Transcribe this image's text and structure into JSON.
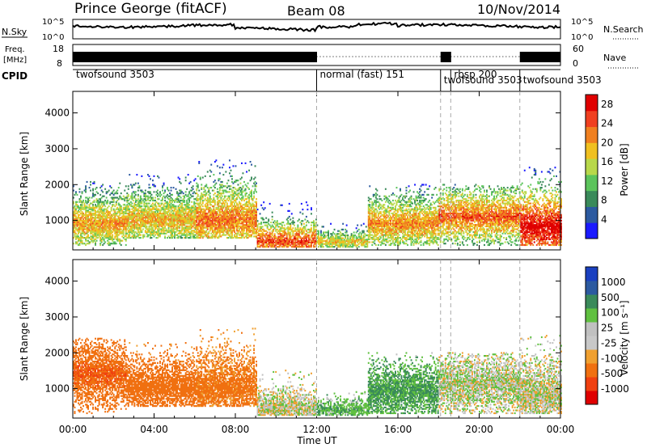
{
  "header": {
    "station": "Prince George (fitACF)",
    "beam": "Beam 08",
    "date": "10/Nov/2014"
  },
  "aux_panels": {
    "nsky": {
      "label": "N.Sky",
      "ticks": [
        "10^5",
        "10^0"
      ],
      "right_ticks": [
        "10^5",
        "10^0"
      ],
      "right_label": "N.Search"
    },
    "freq": {
      "label_line1": "Freq.",
      "label_line2": "[MHz]",
      "ticks": [
        "18",
        "8"
      ],
      "right_ticks": [
        "60",
        "0"
      ],
      "right_label": "Nave"
    },
    "cpid": {
      "label": "CPID",
      "programs": [
        {
          "name": "twofsound 3503",
          "start_hour": 0
        },
        {
          "name": "normal (fast) 151",
          "start_hour": 12
        },
        {
          "name": "twofsound 3503",
          "start_hour": 18.1
        },
        {
          "name": "rbsp 200",
          "start_hour": 18.6
        },
        {
          "name": "twofsound 3503",
          "start_hour": 22
        }
      ]
    }
  },
  "colors": {
    "power": [
      "#1a1aff",
      "#2c5aa0",
      "#3a8a5a",
      "#5cc45c",
      "#b8d84a",
      "#f0c020",
      "#f08020",
      "#f04020",
      "#e00000"
    ],
    "velocity": [
      "#e00000",
      "#f04010",
      "#f07010",
      "#f0a030",
      "#c8c8c8",
      "#c0c0c0",
      "#60c040",
      "#3a8a5a",
      "#2c5aa0",
      "#1a40c0"
    ]
  },
  "chart_data": [
    {
      "type": "heatmap",
      "quantity": "power",
      "ylabel": "Slant Range [km]",
      "ylim": [
        180,
        4600
      ],
      "yticks": [
        1000,
        2000,
        3000,
        4000
      ],
      "xlim": [
        0,
        24
      ],
      "colorbar": {
        "label": "Power [dB]",
        "ticks": [
          "4",
          "8",
          "12",
          "16",
          "20",
          "24",
          "28"
        ],
        "range": [
          0,
          30
        ]
      },
      "cpid_boundaries_hours": [
        12,
        18.1,
        18.6,
        22
      ],
      "echo_regions": [
        {
          "t_start": 0,
          "t_end": 2.6,
          "r_low": 300,
          "r_high": 2100,
          "core_range": 900,
          "level": 18
        },
        {
          "t_start": 2.6,
          "t_end": 6,
          "r_low": 500,
          "r_high": 2300,
          "core_range": 1000,
          "level": 17
        },
        {
          "t_start": 6,
          "t_end": 9,
          "r_low": 500,
          "r_high": 2700,
          "core_range": 1000,
          "level": 20
        },
        {
          "t_start": 9,
          "t_end": 12,
          "r_low": 250,
          "r_high": 1500,
          "core_range": 400,
          "level": 22
        },
        {
          "t_start": 12,
          "t_end": 14.5,
          "r_low": 250,
          "r_high": 900,
          "core_range": 400,
          "level": 16
        },
        {
          "t_start": 14.5,
          "t_end": 18,
          "r_low": 300,
          "r_high": 2000,
          "core_range": 900,
          "level": 19
        },
        {
          "t_start": 18,
          "t_end": 22,
          "r_low": 300,
          "r_high": 2000,
          "core_range": 1100,
          "level": 21
        },
        {
          "t_start": 22,
          "t_end": 24,
          "r_low": 300,
          "r_high": 2500,
          "core_range": 800,
          "level": 26
        }
      ]
    },
    {
      "type": "heatmap",
      "quantity": "velocity",
      "ylabel": "Slant Range [km]",
      "ylim": [
        180,
        4600
      ],
      "yticks": [
        1000,
        2000,
        3000,
        4000
      ],
      "xlim": [
        0,
        24
      ],
      "xticks": [
        "00:00",
        "04:00",
        "08:00",
        "12:00",
        "16:00",
        "20:00",
        "00:00"
      ],
      "xlabel": "Time UT",
      "colorbar": {
        "label": "Velocity [m s⁻¹]",
        "ticks": [
          "1000",
          "500",
          "100",
          "25",
          "-25",
          "-100",
          "-500",
          "-1000"
        ]
      },
      "cpid_boundaries_hours": [
        12,
        18.1,
        18.6,
        22
      ],
      "echo_regions": [
        {
          "t_start": 0,
          "t_end": 2.6,
          "r_low": 300,
          "r_high": 2400,
          "core_range": 1400,
          "velocity": -500
        },
        {
          "t_start": 2.6,
          "t_end": 6,
          "r_low": 500,
          "r_high": 2300,
          "core_range": 1000,
          "velocity": -200
        },
        {
          "t_start": 6,
          "t_end": 9,
          "r_low": 500,
          "r_high": 2700,
          "core_range": 1000,
          "velocity": -150
        },
        {
          "t_start": 9,
          "t_end": 12,
          "r_low": 250,
          "r_high": 1500,
          "core_range": 400,
          "velocity": 0
        },
        {
          "t_start": 12,
          "t_end": 14.5,
          "r_low": 250,
          "r_high": 900,
          "core_range": 400,
          "velocity": 80
        },
        {
          "t_start": 14.5,
          "t_end": 18,
          "r_low": 300,
          "r_high": 2000,
          "core_range": 900,
          "velocity": 120
        },
        {
          "t_start": 18,
          "t_end": 22,
          "r_low": 300,
          "r_high": 2000,
          "core_range": 1100,
          "velocity": 10
        },
        {
          "t_start": 22,
          "t_end": 24,
          "r_low": 300,
          "r_high": 2500,
          "core_range": 800,
          "velocity": 0
        }
      ]
    }
  ]
}
